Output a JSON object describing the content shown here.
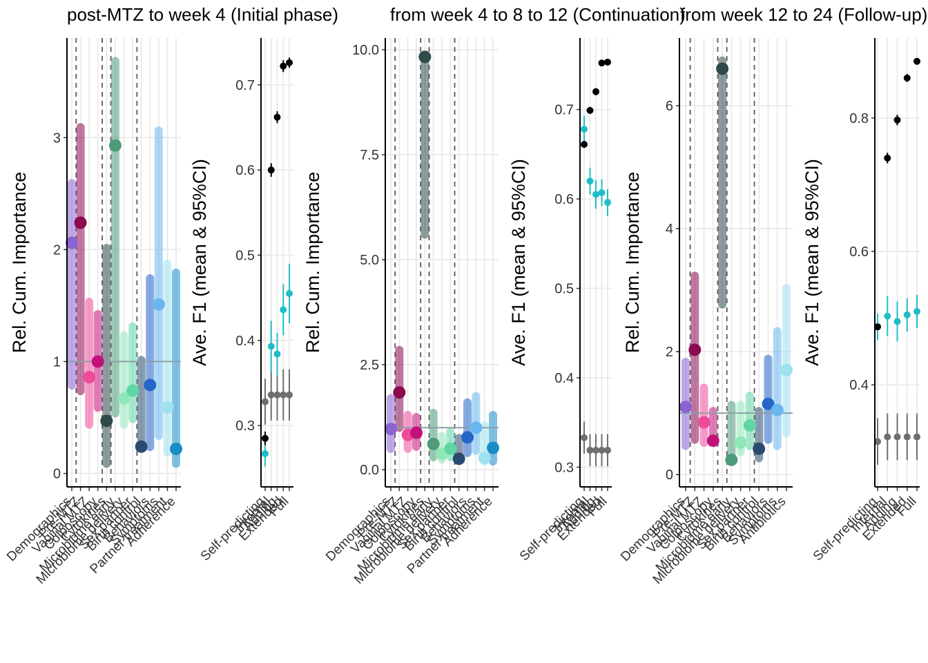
{
  "chart_data": [
    {
      "type": "range-dot",
      "title": "post-MTZ to week 4 (Initial phase)",
      "y_label": "Rel. Cum. Importance",
      "categories": [
        "Demographics",
        "Pre-MTZ",
        "Vaginal MTZ",
        "Colposcopy",
        "Cytokines",
        "Microbiome early",
        "Microbiome delivery",
        "Sex partner",
        "Birth control",
        "Behaviors",
        "Symptoms",
        "Partner treatment",
        "Adherence"
      ],
      "values": [
        2.06,
        2.24,
        0.86,
        1.0,
        0.47,
        2.93,
        0.67,
        0.74,
        0.24,
        0.79,
        1.51,
        0.59,
        0.22
      ],
      "low": [
        0.75,
        0.7,
        0.4,
        0.55,
        0.05,
        0.5,
        0.4,
        0.45,
        0.2,
        0.2,
        0.3,
        0.15,
        0.05
      ],
      "high": [
        2.63,
        3.13,
        1.57,
        1.46,
        2.05,
        3.72,
        1.27,
        1.35,
        1.05,
        1.78,
        3.1,
        1.91,
        1.83
      ],
      "colors": [
        "#8a63d2",
        "#8b0a50",
        "#f04a9a",
        "#c2127a",
        "#2f4a4a",
        "#4e9a7a",
        "#8ee8b8",
        "#5fd6a6",
        "#2a4a70",
        "#2566c8",
        "#6ab6ee",
        "#9ee2f0",
        "#1a8cc8"
      ],
      "hline": 1,
      "dividers": [
        0.5,
        3.5,
        4.5,
        7.5
      ],
      "ylim": [
        -0.12,
        3.89
      ],
      "yticks": [
        0,
        1,
        2,
        3
      ],
      "grid": true
    },
    {
      "type": "errorbar",
      "y_label": "Ave. F1 (mean & 95%CI)",
      "categories": [
        "Self-predicting",
        "Internal",
        "Adding",
        "Extended",
        "Full"
      ],
      "series": [
        {
          "color": "#6e6e6e",
          "values": [
            0.328,
            0.336,
            0.336,
            0.336,
            0.336
          ],
          "errors": [
            0.027,
            0.03,
            0.03,
            0.03,
            0.03
          ]
        },
        {
          "color": "#1fbec6",
          "values": [
            0.267,
            0.393,
            0.384,
            0.436,
            0.455
          ],
          "errors": [
            0.015,
            0.03,
            0.025,
            0.03,
            0.035
          ]
        },
        {
          "color": "#000000",
          "values": [
            0.285,
            0.6,
            0.662,
            0.722,
            0.726
          ],
          "errors": [
            0.008,
            0.008,
            0.007,
            0.007,
            0.006
          ]
        }
      ],
      "ylim": [
        0.228,
        0.755
      ],
      "yticks": [
        0.3,
        0.4,
        0.5,
        0.6,
        0.7
      ],
      "grid": true
    },
    {
      "type": "range-dot",
      "title": "from week 4 to 8 to 12 (Continuation)",
      "y_label": "Rel. Cum. Importance",
      "categories": [
        "Demographics",
        "Pre-MTZ",
        "Vaginal MTZ",
        "Colposcopy",
        "Cytokines",
        "Microbiome early",
        "Microbiome delivery",
        "Sex partner",
        "Birth control",
        "Behaviors",
        "Symptoms",
        "Partner treatment",
        "Adherence"
      ],
      "values": [
        0.97,
        1.84,
        0.83,
        0.88,
        9.83,
        0.61,
        0.38,
        0.5,
        0.26,
        0.77,
        1.0,
        0.28,
        0.52
      ],
      "low": [
        0.4,
        0.9,
        0.4,
        0.45,
        5.5,
        0.2,
        0.15,
        0.2,
        0.2,
        0.3,
        0.35,
        0.1,
        0.1
      ],
      "high": [
        1.8,
        2.95,
        1.4,
        1.35,
        9.9,
        1.45,
        0.9,
        1.0,
        0.85,
        1.7,
        1.85,
        1.15,
        1.4
      ],
      "colors": [
        "#8a63d2",
        "#8b0a50",
        "#f04a9a",
        "#c2127a",
        "#2f4a4a",
        "#4e9a7a",
        "#8ee8b8",
        "#5fd6a6",
        "#2a4a70",
        "#2566c8",
        "#6ab6ee",
        "#9ee2f0",
        "#1a8cc8"
      ],
      "hline": 1,
      "dividers": [
        0.5,
        3.5,
        4.5,
        7.5
      ],
      "ylim": [
        -0.41,
        10.28
      ],
      "yticks": [
        {
          "value": 0,
          "label": "0.0"
        },
        2.5,
        {
          "value": 5,
          "label": "5.0"
        },
        7.5,
        {
          "value": 10,
          "label": "10.0"
        }
      ],
      "grid": true
    },
    {
      "type": "errorbar",
      "y_label": "Ave. F1 (mean & 95%CI)",
      "categories": [
        "Self-predicting",
        "Internal",
        "Adding",
        "Extended",
        "Full"
      ],
      "series": [
        {
          "color": "#6e6e6e",
          "values": [
            0.333,
            0.319,
            0.319,
            0.319,
            0.319
          ],
          "errors": [
            0.018,
            0.018,
            0.018,
            0.018,
            0.018
          ]
        },
        {
          "color": "#1fbec6",
          "values": [
            0.678,
            0.62,
            0.605,
            0.607,
            0.596
          ],
          "errors": [
            0.015,
            0.015,
            0.016,
            0.015,
            0.015
          ]
        },
        {
          "color": "#000000",
          "values": [
            0.661,
            0.699,
            0.72,
            0.752,
            0.753
          ],
          "errors": [
            0.004,
            0.004,
            0.004,
            0.003,
            0.003
          ]
        }
      ],
      "ylim": [
        0.278,
        0.78
      ],
      "yticks": [
        0.3,
        0.4,
        0.5,
        0.6,
        0.7
      ],
      "grid": true
    },
    {
      "type": "range-dot",
      "title": "from week 12 to 24 (Follow-up)",
      "y_label": "Rel. Cum. Importance",
      "categories": [
        "Demographics",
        "Pre-MTZ",
        "Vaginal MTZ",
        "Colposcopy",
        "Cytokines",
        "Microbiome early",
        "Microbiome delivery",
        "Sex partner",
        "Birth control",
        "Behaviors",
        "Symptoms",
        "Antibiotics"
      ],
      "values": [
        1.1,
        2.03,
        0.85,
        0.55,
        6.6,
        0.24,
        0.52,
        0.8,
        0.42,
        1.15,
        1.05,
        1.7
      ],
      "low": [
        0.4,
        0.5,
        0.45,
        0.45,
        2.7,
        0.15,
        0.3,
        0.4,
        0.2,
        0.5,
        0.4,
        0.6
      ],
      "high": [
        1.9,
        3.3,
        1.48,
        1.1,
        6.8,
        1.2,
        1.2,
        1.35,
        1.1,
        1.95,
        2.4,
        3.1
      ],
      "colors": [
        "#8a63d2",
        "#8b0a50",
        "#f04a9a",
        "#c2127a",
        "#2f4a4a",
        "#4e9a7a",
        "#8ee8b8",
        "#5fd6a6",
        "#2a4a70",
        "#2566c8",
        "#6ab6ee",
        "#9ee2f0"
      ],
      "hline": 1,
      "dividers": [
        0.5,
        3.5,
        4.5,
        7.5
      ],
      "ylim": [
        -0.2,
        7.1
      ],
      "yticks": [
        0,
        2,
        4,
        6
      ],
      "grid": true
    },
    {
      "type": "errorbar",
      "y_label": "Ave. F1 (mean & 95%CI)",
      "categories": [
        "Self-predicting",
        "Internal",
        "Adding",
        "Extended",
        "Full"
      ],
      "series": [
        {
          "color": "#6e6e6e",
          "values": [
            0.315,
            0.322,
            0.322,
            0.322,
            0.322
          ],
          "errors": [
            0.035,
            0.035,
            0.035,
            0.035,
            0.035
          ]
        },
        {
          "color": "#1fbec6",
          "values": [
            0.487,
            0.503,
            0.495,
            0.505,
            0.51
          ],
          "errors": [
            0.02,
            0.03,
            0.03,
            0.025,
            0.025
          ]
        },
        {
          "color": "#000000",
          "values": [
            0.487,
            0.74,
            0.797,
            0.86,
            0.885
          ],
          "errors": [
            0.005,
            0.008,
            0.008,
            0.006,
            0.005
          ]
        }
      ],
      "ylim": [
        0.247,
        0.92
      ],
      "yticks": [
        0.4,
        0.6,
        0.8
      ],
      "grid": true
    }
  ]
}
